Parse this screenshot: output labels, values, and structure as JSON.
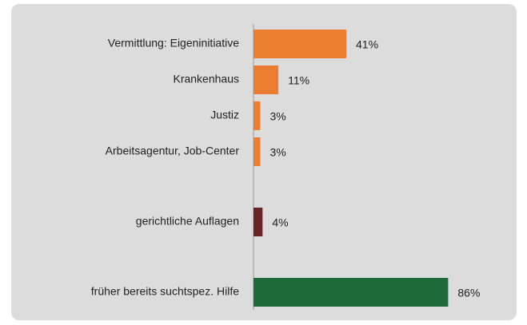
{
  "chart_data": {
    "type": "hbar",
    "categories": [
      "Vermittlung: Eigeninitiative",
      "Krankenhaus",
      "Justiz",
      "Arbeitsagentur, Job-Center",
      "gerichtliche Auflagen",
      "früher bereits suchtspez. Hilfe"
    ],
    "values": [
      41,
      11,
      3,
      3,
      4,
      86
    ],
    "value_labels": [
      "41%",
      "11%",
      "3%",
      "3%",
      "4%",
      "86%"
    ],
    "colors": [
      "#ed7d31",
      "#ed7d31",
      "#ed7d31",
      "#ed7d31",
      "#6b2424",
      "#1e6b3a"
    ]
  }
}
